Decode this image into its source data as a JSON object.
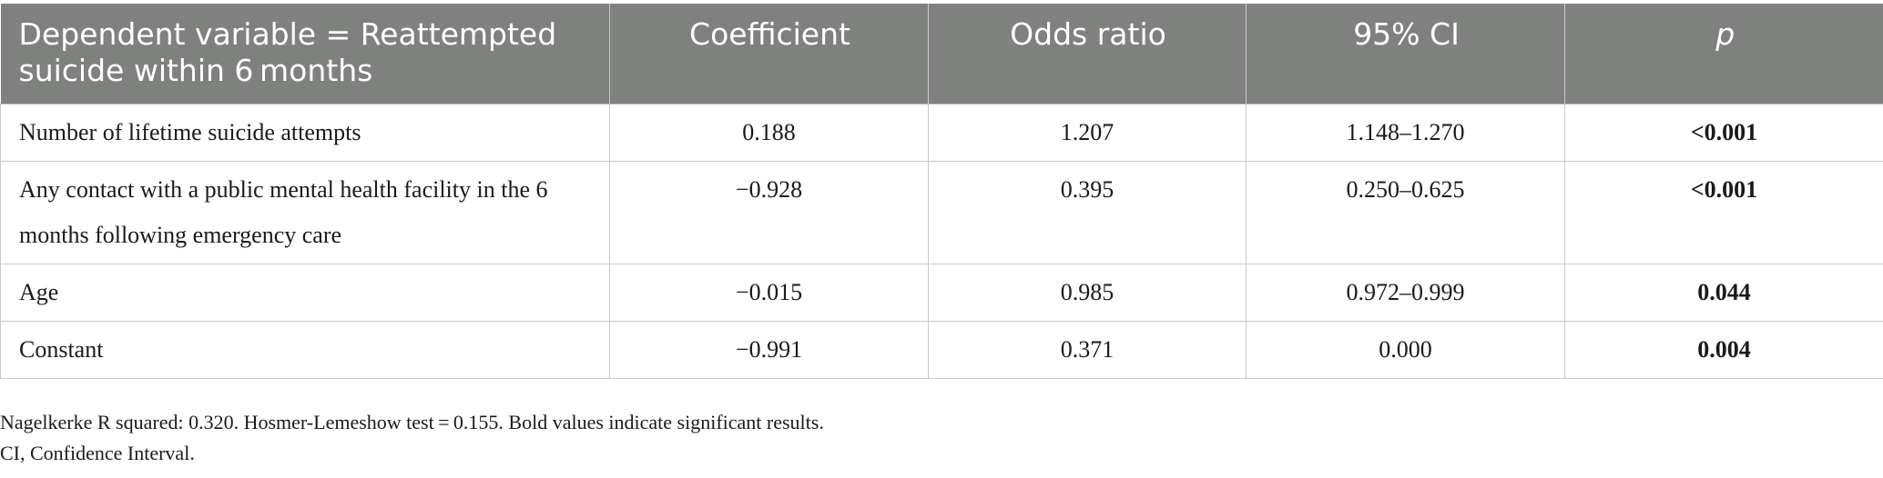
{
  "table": {
    "headers": [
      "Dependent variable = Reattempted suicide within 6 months",
      "Coefficient",
      "Odds ratio",
      "95% CI",
      "p"
    ],
    "rows": [
      {
        "variable": "Number of lifetime suicide attempts",
        "coefficient": "0.188",
        "odds_ratio": "1.207",
        "ci": "1.148–1.270",
        "p": "<0.001",
        "p_bold": true
      },
      {
        "variable": "Any contact with a public mental health facility in the 6 months following emergency care",
        "coefficient": "−0.928",
        "odds_ratio": "0.395",
        "ci": "0.250–0.625",
        "p": "<0.001",
        "p_bold": true
      },
      {
        "variable": "Age",
        "coefficient": "−0.015",
        "odds_ratio": "0.985",
        "ci": "0.972–0.999",
        "p": "0.044",
        "p_bold": true
      },
      {
        "variable": "Constant",
        "coefficient": "−0.991",
        "odds_ratio": "0.371",
        "ci": "0.000",
        "p": "0.004",
        "p_bold": true
      }
    ]
  },
  "notes": {
    "line1": "Nagelkerke R squared: 0.320. Hosmer-Lemeshow test = 0.155. Bold values indicate significant results.",
    "line2": "CI, Confidence Interval."
  },
  "colors": {
    "header_background": "#7f817f",
    "header_text": "#ffffff",
    "grid_lines": "#c9c9c9"
  }
}
